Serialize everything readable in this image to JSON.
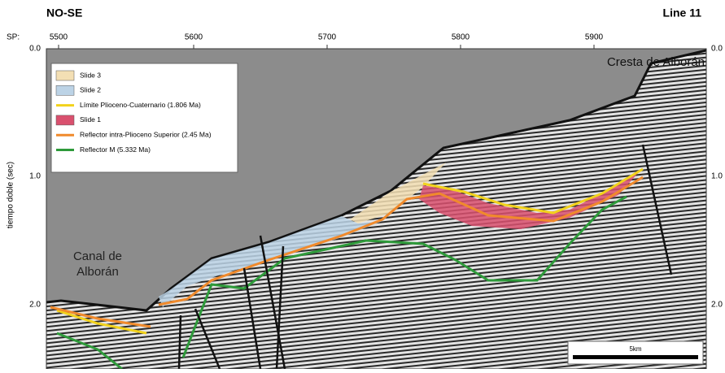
{
  "header": {
    "left": "NO-SE",
    "right": "Line 11"
  },
  "axis": {
    "sp_label": "SP:",
    "sp_ticks": [
      "5500",
      "5600",
      "5700",
      "5800",
      "5900"
    ],
    "y_label": "tiempo doble (sec)",
    "y_ticks": [
      "0.0",
      "1.0",
      "2.0"
    ]
  },
  "legend": [
    {
      "label": "Slide 3",
      "kind": "box",
      "color": "#f3dfb4"
    },
    {
      "label": "Slide 2",
      "kind": "box",
      "color": "#bcd3e6"
    },
    {
      "label": "Límite Plioceno-Cuaternario (1.806 Ma)",
      "kind": "line",
      "color": "#f2d21c"
    },
    {
      "label": "Slide 1",
      "kind": "box",
      "color": "#d9506e"
    },
    {
      "label": "Reflector intra-Plioceno Superior (2.45 Ma)",
      "kind": "line",
      "color": "#f08a2c"
    },
    {
      "label": "Reflector M (5.332 Ma)",
      "kind": "line",
      "color": "#2e9a3a"
    }
  ],
  "annotations": {
    "canal": [
      "Canal de",
      "Alborán"
    ],
    "cresta": "Cresta de Alborán"
  },
  "scale_bar": "5km"
}
